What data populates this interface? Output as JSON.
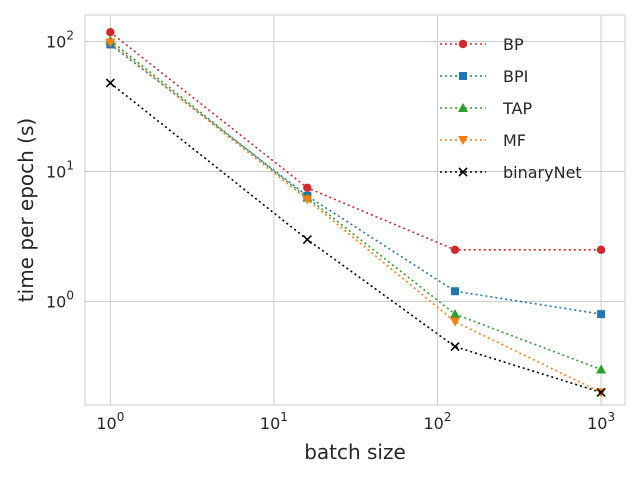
{
  "chart_data": {
    "type": "line",
    "xlabel": "batch size",
    "ylabel": "time per epoch (s)",
    "xscale": "log",
    "yscale": "log",
    "xlim": [
      0.7,
      1400
    ],
    "ylim": [
      0.16,
      160
    ],
    "grid": true,
    "legend_position": "top-right",
    "x_ticks": [
      {
        "value": 1,
        "base": "10",
        "exp": "0"
      },
      {
        "value": 10,
        "base": "10",
        "exp": "1"
      },
      {
        "value": 100,
        "base": "10",
        "exp": "2"
      },
      {
        "value": 1000,
        "base": "10",
        "exp": "3"
      }
    ],
    "y_ticks": [
      {
        "value": 1,
        "base": "10",
        "exp": "0"
      },
      {
        "value": 10,
        "base": "10",
        "exp": "1"
      },
      {
        "value": 100,
        "base": "10",
        "exp": "2"
      }
    ],
    "x": [
      1,
      16,
      128,
      1000
    ],
    "series": [
      {
        "name": "BP",
        "color": "#d62728",
        "marker": "circle",
        "values": [
          118,
          7.5,
          2.5,
          2.5
        ]
      },
      {
        "name": "BPI",
        "color": "#1f77b4",
        "marker": "square",
        "values": [
          95,
          6.5,
          1.2,
          0.8
        ]
      },
      {
        "name": "TAP",
        "color": "#2ca02c",
        "marker": "triangle-up",
        "values": [
          102,
          6.3,
          0.8,
          0.3
        ]
      },
      {
        "name": "MF",
        "color": "#ff7f0e",
        "marker": "triangle-down",
        "values": [
          98,
          6.1,
          0.7,
          0.2
        ]
      },
      {
        "name": "binaryNet",
        "color": "#000000",
        "marker": "x",
        "values": [
          48,
          3.0,
          0.45,
          0.2
        ]
      }
    ]
  }
}
